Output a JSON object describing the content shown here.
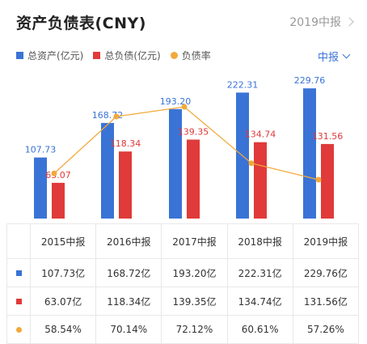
{
  "header": {
    "title": "资产负债表(CNY)",
    "period_link": "2019中报"
  },
  "legend": {
    "assets": "总资产(亿元)",
    "liabilities": "总负债(亿元)",
    "ratio": "负债率"
  },
  "period_select": "中报",
  "colors": {
    "assets": "#3a73d6",
    "liabilities": "#e03a3a",
    "ratio": "#f2a93b"
  },
  "chart_data": {
    "type": "bar",
    "categories": [
      "2015中报",
      "2016中报",
      "2017中报",
      "2018中报",
      "2019中报"
    ],
    "series": [
      {
        "name": "总资产(亿元)",
        "values": [
          107.73,
          168.72,
          193.2,
          222.31,
          229.76
        ],
        "labels": [
          "107.73",
          "168.72",
          "193.20",
          "222.31",
          "229.76"
        ]
      },
      {
        "name": "总负债(亿元)",
        "values": [
          63.07,
          118.34,
          139.35,
          134.74,
          131.56
        ],
        "labels": [
          "63.07",
          "118.34",
          "139.35",
          "134.74",
          "131.56"
        ]
      },
      {
        "name": "负债率",
        "type": "line",
        "values": [
          58.54,
          70.14,
          72.12,
          60.61,
          57.26
        ],
        "unit": "%"
      }
    ],
    "grid": false,
    "legend_position": "top-left"
  },
  "table": {
    "headers": [
      "2015中报",
      "2016中报",
      "2017中报",
      "2018中报",
      "2019中报"
    ],
    "rows": [
      {
        "key": "assets",
        "values": [
          "107.73亿",
          "168.72亿",
          "193.20亿",
          "222.31亿",
          "229.76亿"
        ]
      },
      {
        "key": "liabilities",
        "values": [
          "63.07亿",
          "118.34亿",
          "139.35亿",
          "134.74亿",
          "131.56亿"
        ]
      },
      {
        "key": "ratio",
        "values": [
          "58.54%",
          "70.14%",
          "72.12%",
          "60.61%",
          "57.26%"
        ]
      }
    ]
  }
}
